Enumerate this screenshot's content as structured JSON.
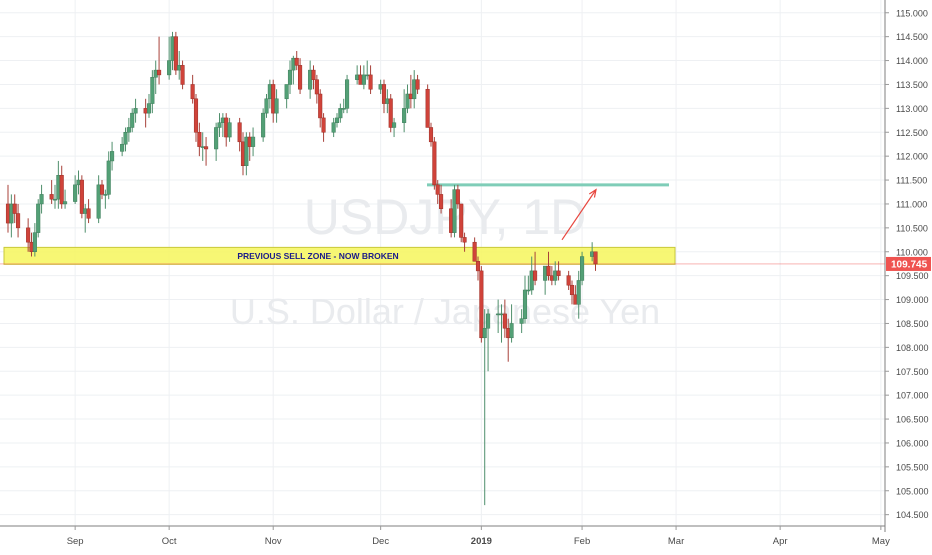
{
  "watermark": {
    "symbol": "USDJPY, 1D",
    "description": "U.S. Dollar / Japanese Yen"
  },
  "annotation": {
    "zone_label": "PREVIOUS SELL ZONE - NOW BROKEN"
  },
  "price_scale": {
    "current_price_label": "109.745"
  },
  "colors": {
    "up": "#53a076",
    "down": "#d0433a",
    "zone_fill": "#f6f65c",
    "zone_border": "#c8c83a",
    "target_line": "#7fcdb8",
    "arrow": "#e8473f",
    "current_price": "#ef5350",
    "grid": "#eef0f3",
    "axis_text": "#4a4a4a",
    "watermark": "#e9ebee",
    "zone_text": "#1b1b8a"
  },
  "chart_data": {
    "type": "candlestick",
    "title": "USDJPY, 1D",
    "subtitle": "U.S. Dollar / Japanese Yen",
    "ylim": [
      104.2,
      115.1
    ],
    "y_ticks": [
      "104.500",
      "105.000",
      "105.500",
      "106.000",
      "106.500",
      "107.000",
      "107.500",
      "108.000",
      "108.500",
      "109.000",
      "109.500",
      "110.000",
      "110.500",
      "111.000",
      "111.500",
      "112.000",
      "112.500",
      "113.000",
      "113.500",
      "114.000",
      "114.500",
      "115.000"
    ],
    "x_ticks": [
      "Sep",
      "Oct",
      "Nov",
      "Dec",
      "2019",
      "Feb",
      "Mar",
      "Apr",
      "May"
    ],
    "x_tick_dates": [
      "2018-09-03",
      "2018-10-01",
      "2018-11-01",
      "2018-12-03",
      "2019-01-02",
      "2019-02-01",
      "2019-03-01",
      "2019-04-01",
      "2019-05-01"
    ],
    "dates": [
      "2018-08-14",
      "2018-08-15",
      "2018-08-16",
      "2018-08-17",
      "2018-08-20",
      "2018-08-21",
      "2018-08-22",
      "2018-08-23",
      "2018-08-24",
      "2018-08-27",
      "2018-08-28",
      "2018-08-29",
      "2018-08-30",
      "2018-08-31",
      "2018-09-03",
      "2018-09-04",
      "2018-09-05",
      "2018-09-06",
      "2018-09-07",
      "2018-09-10",
      "2018-09-11",
      "2018-09-12",
      "2018-09-13",
      "2018-09-14",
      "2018-09-17",
      "2018-09-18",
      "2018-09-19",
      "2018-09-20",
      "2018-09-21",
      "2018-09-24",
      "2018-09-25",
      "2018-09-26",
      "2018-09-27",
      "2018-09-28",
      "2018-10-01",
      "2018-10-02",
      "2018-10-03",
      "2018-10-04",
      "2018-10-05",
      "2018-10-08",
      "2018-10-09",
      "2018-10-10",
      "2018-10-11",
      "2018-10-12",
      "2018-10-15",
      "2018-10-16",
      "2018-10-17",
      "2018-10-18",
      "2018-10-19",
      "2018-10-22",
      "2018-10-23",
      "2018-10-24",
      "2018-10-25",
      "2018-10-26",
      "2018-10-29",
      "2018-10-30",
      "2018-10-31",
      "2018-11-01",
      "2018-11-02",
      "2018-11-05",
      "2018-11-06",
      "2018-11-07",
      "2018-11-08",
      "2018-11-09",
      "2018-11-12",
      "2018-11-13",
      "2018-11-14",
      "2018-11-15",
      "2018-11-16",
      "2018-11-19",
      "2018-11-20",
      "2018-11-21",
      "2018-11-22",
      "2018-11-23",
      "2018-11-26",
      "2018-11-27",
      "2018-11-28",
      "2018-11-29",
      "2018-11-30",
      "2018-12-03",
      "2018-12-04",
      "2018-12-05",
      "2018-12-06",
      "2018-12-07",
      "2018-12-10",
      "2018-12-11",
      "2018-12-12",
      "2018-12-13",
      "2018-12-14",
      "2018-12-17",
      "2018-12-18",
      "2018-12-19",
      "2018-12-20",
      "2018-12-21",
      "2018-12-24",
      "2018-12-25",
      "2018-12-26",
      "2018-12-27",
      "2018-12-28",
      "2018-12-31",
      "2019-01-01",
      "2019-01-02",
      "2019-01-03",
      "2019-01-04",
      "2019-01-07",
      "2019-01-08",
      "2019-01-09",
      "2019-01-10",
      "2019-01-11",
      "2019-01-14",
      "2019-01-15",
      "2019-01-16",
      "2019-01-17",
      "2019-01-18",
      "2019-01-21",
      "2019-01-22",
      "2019-01-23",
      "2019-01-24",
      "2019-01-25",
      "2019-01-28",
      "2019-01-29",
      "2019-01-30",
      "2019-01-31",
      "2019-02-01",
      "2019-02-04",
      "2019-02-05"
    ],
    "open": [
      111.0,
      110.6,
      111.0,
      110.8,
      110.5,
      110.2,
      110.0,
      110.4,
      111.0,
      111.2,
      111.1,
      111.1,
      111.6,
      111.0,
      111.05,
      111.4,
      111.5,
      110.8,
      110.9,
      110.7,
      111.4,
      111.2,
      111.2,
      111.9,
      112.1,
      112.25,
      112.5,
      112.6,
      112.9,
      113.0,
      112.9,
      113.1,
      113.65,
      113.8,
      113.7,
      114.0,
      114.5,
      113.8,
      113.9,
      113.5,
      113.2,
      112.5,
      112.2,
      112.2,
      112.15,
      112.6,
      112.7,
      112.8,
      112.4,
      112.7,
      112.3,
      111.8,
      112.4,
      112.2,
      112.4,
      112.9,
      113.2,
      113.5,
      112.9,
      113.2,
      113.5,
      113.8,
      114.05,
      113.9,
      113.4,
      113.8,
      113.6,
      113.3,
      112.8,
      112.5,
      112.7,
      112.8,
      113.0,
      113.0,
      113.6,
      113.7,
      113.5,
      113.7,
      113.7,
      113.4,
      113.5,
      113.1,
      113.2,
      112.6,
      112.7,
      113.0,
      113.3,
      113.2,
      113.6,
      113.4,
      112.6,
      112.3,
      111.4,
      111.2,
      110.9,
      110.4,
      111.3,
      111.0,
      110.3,
      110.2,
      109.8,
      109.6,
      108.2,
      108.4,
      108.7,
      108.7,
      108.7,
      108.4,
      108.2,
      108.5,
      108.6,
      109.2,
      109.2,
      109.6,
      109.4,
      109.7,
      109.5,
      109.4,
      109.6,
      109.5,
      109.3,
      109.1,
      108.9,
      109.4,
      109.9,
      110.0
    ],
    "high": [
      111.4,
      111.2,
      111.2,
      111.0,
      110.7,
      110.4,
      110.6,
      111.1,
      111.4,
      111.5,
      111.4,
      111.9,
      111.8,
      111.3,
      111.6,
      111.7,
      111.6,
      111.0,
      111.1,
      111.6,
      111.5,
      111.3,
      112.1,
      112.3,
      112.4,
      112.6,
      112.8,
      113.0,
      113.2,
      113.2,
      113.3,
      113.8,
      114.0,
      114.5,
      114.5,
      114.6,
      114.6,
      114.2,
      114.0,
      113.7,
      113.3,
      112.7,
      112.5,
      112.4,
      112.7,
      112.9,
      112.9,
      112.9,
      112.8,
      112.8,
      112.5,
      112.5,
      112.5,
      112.6,
      113.0,
      113.3,
      113.6,
      113.6,
      113.4,
      113.5,
      114.0,
      114.1,
      114.2,
      114.05,
      114.0,
      113.9,
      113.7,
      113.4,
      112.9,
      112.8,
      112.9,
      113.1,
      113.2,
      113.7,
      113.9,
      113.9,
      113.9,
      114.0,
      113.9,
      113.6,
      113.6,
      113.4,
      113.3,
      112.8,
      113.4,
      113.5,
      113.7,
      113.8,
      113.7,
      113.5,
      112.7,
      112.4,
      111.5,
      111.4,
      111.1,
      111.4,
      111.4,
      111.0,
      110.4,
      110.3,
      109.9,
      109.7,
      108.8,
      108.8,
      109.0,
      108.9,
      109.0,
      108.6,
      108.9,
      108.8,
      109.5,
      109.5,
      109.9,
      110.0,
      109.7,
      110.0,
      109.7,
      109.8,
      109.8,
      109.6,
      109.4,
      109.3,
      109.6,
      110.0,
      110.2,
      110.0
    ],
    "low": [
      110.4,
      110.3,
      110.6,
      110.3,
      110.0,
      109.9,
      109.9,
      110.3,
      110.8,
      111.0,
      110.9,
      110.9,
      110.9,
      110.9,
      111.0,
      111.2,
      110.7,
      110.4,
      110.6,
      110.6,
      111.1,
      110.9,
      111.1,
      111.7,
      112.0,
      112.1,
      112.3,
      112.5,
      112.7,
      112.6,
      112.8,
      112.9,
      113.3,
      113.5,
      113.6,
      113.8,
      113.7,
      113.6,
      113.4,
      113.1,
      112.3,
      112.0,
      111.9,
      111.8,
      111.9,
      112.4,
      112.4,
      112.2,
      112.3,
      112.1,
      111.6,
      111.6,
      111.9,
      112.0,
      112.3,
      112.8,
      113.0,
      112.7,
      112.7,
      113.0,
      113.3,
      113.5,
      113.8,
      113.3,
      113.2,
      113.4,
      113.1,
      112.6,
      112.3,
      112.4,
      112.6,
      112.7,
      112.9,
      112.9,
      113.5,
      113.5,
      113.4,
      113.6,
      113.3,
      113.3,
      112.9,
      112.9,
      112.5,
      112.4,
      112.5,
      112.9,
      113.0,
      113.0,
      113.3,
      112.6,
      112.2,
      111.3,
      111.0,
      110.8,
      110.3,
      110.3,
      110.9,
      110.2,
      110.0,
      109.8,
      109.4,
      108.1,
      104.7,
      107.5,
      108.3,
      108.1,
      108.2,
      107.7,
      108.1,
      108.3,
      108.5,
      109.1,
      109.1,
      109.3,
      109.1,
      109.4,
      109.3,
      109.3,
      109.4,
      109.2,
      108.9,
      108.9,
      108.6,
      109.3,
      109.8,
      109.6
    ],
    "close": [
      110.6,
      111.0,
      110.8,
      110.5,
      110.2,
      110.0,
      110.4,
      111.0,
      111.2,
      111.1,
      111.1,
      111.6,
      111.0,
      111.05,
      111.4,
      111.5,
      110.8,
      110.9,
      110.7,
      111.4,
      111.2,
      111.2,
      111.9,
      112.1,
      112.25,
      112.5,
      112.6,
      112.9,
      113.0,
      112.9,
      113.1,
      113.65,
      113.8,
      113.7,
      114.0,
      114.5,
      113.8,
      113.9,
      113.5,
      113.2,
      112.5,
      112.2,
      112.2,
      112.15,
      112.6,
      112.7,
      112.8,
      112.4,
      112.7,
      112.3,
      111.8,
      112.4,
      112.2,
      112.4,
      112.9,
      113.2,
      113.5,
      112.9,
      113.2,
      113.5,
      113.8,
      114.05,
      113.9,
      113.4,
      113.8,
      113.6,
      113.3,
      112.8,
      112.5,
      112.7,
      112.8,
      113.0,
      113.0,
      113.6,
      113.7,
      113.5,
      113.7,
      113.7,
      113.4,
      113.5,
      113.1,
      113.2,
      112.6,
      112.7,
      113.0,
      113.3,
      113.2,
      113.6,
      113.4,
      112.6,
      112.3,
      111.4,
      111.2,
      110.9,
      110.4,
      111.3,
      111.0,
      110.3,
      110.2,
      109.8,
      109.6,
      108.2,
      108.4,
      108.7,
      108.7,
      108.7,
      108.4,
      108.2,
      108.5,
      108.6,
      109.2,
      109.2,
      109.6,
      109.4,
      109.7,
      109.5,
      109.4,
      109.6,
      109.5,
      109.3,
      109.1,
      108.9,
      109.4,
      109.9,
      110.0,
      109.745
    ],
    "zone": {
      "low": 109.8,
      "high": 110.05,
      "start": "2018-08-14",
      "end": "2019-03-15",
      "label": "PREVIOUS SELL ZONE - NOW BROKEN"
    },
    "target_level": {
      "value": 111.4,
      "start": "2018-12-24",
      "end": "2019-03-15"
    },
    "projection_arrow": {
      "from": {
        "date": "2019-02-05",
        "price": 110.25
      },
      "to": {
        "date": "2019-02-26",
        "price": 111.3
      }
    },
    "current_price": 109.745
  }
}
